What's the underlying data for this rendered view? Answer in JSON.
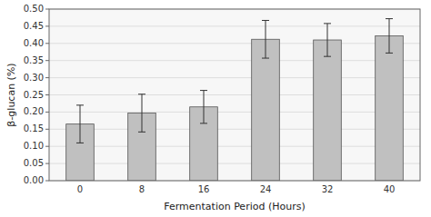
{
  "chart_data": {
    "type": "bar",
    "categories": [
      "0",
      "8",
      "16",
      "24",
      "32",
      "40"
    ],
    "values": [
      0.165,
      0.197,
      0.215,
      0.412,
      0.41,
      0.422
    ],
    "errors": [
      0.055,
      0.055,
      0.048,
      0.055,
      0.048,
      0.05
    ],
    "color": "#c0c0c0",
    "xlabel": "Fermentation Period (Hours)",
    "ylabel": "β-glucan (%)",
    "ylim": [
      0.0,
      0.5
    ],
    "yticks": [
      {
        "value": 0.0,
        "label": "0.00"
      },
      {
        "value": 0.05,
        "label": "0.05"
      },
      {
        "value": 0.1,
        "label": "0.10"
      },
      {
        "value": 0.15,
        "label": "0.15"
      },
      {
        "value": 0.2,
        "label": "0.20"
      },
      {
        "value": 0.25,
        "label": "0.25"
      },
      {
        "value": 0.3,
        "label": "0.30"
      },
      {
        "value": 0.35,
        "label": "0.35"
      },
      {
        "value": 0.4,
        "label": "0.40"
      },
      {
        "value": 0.45,
        "label": "0.45"
      },
      {
        "value": 0.5,
        "label": "0.50"
      }
    ],
    "grid": true
  }
}
